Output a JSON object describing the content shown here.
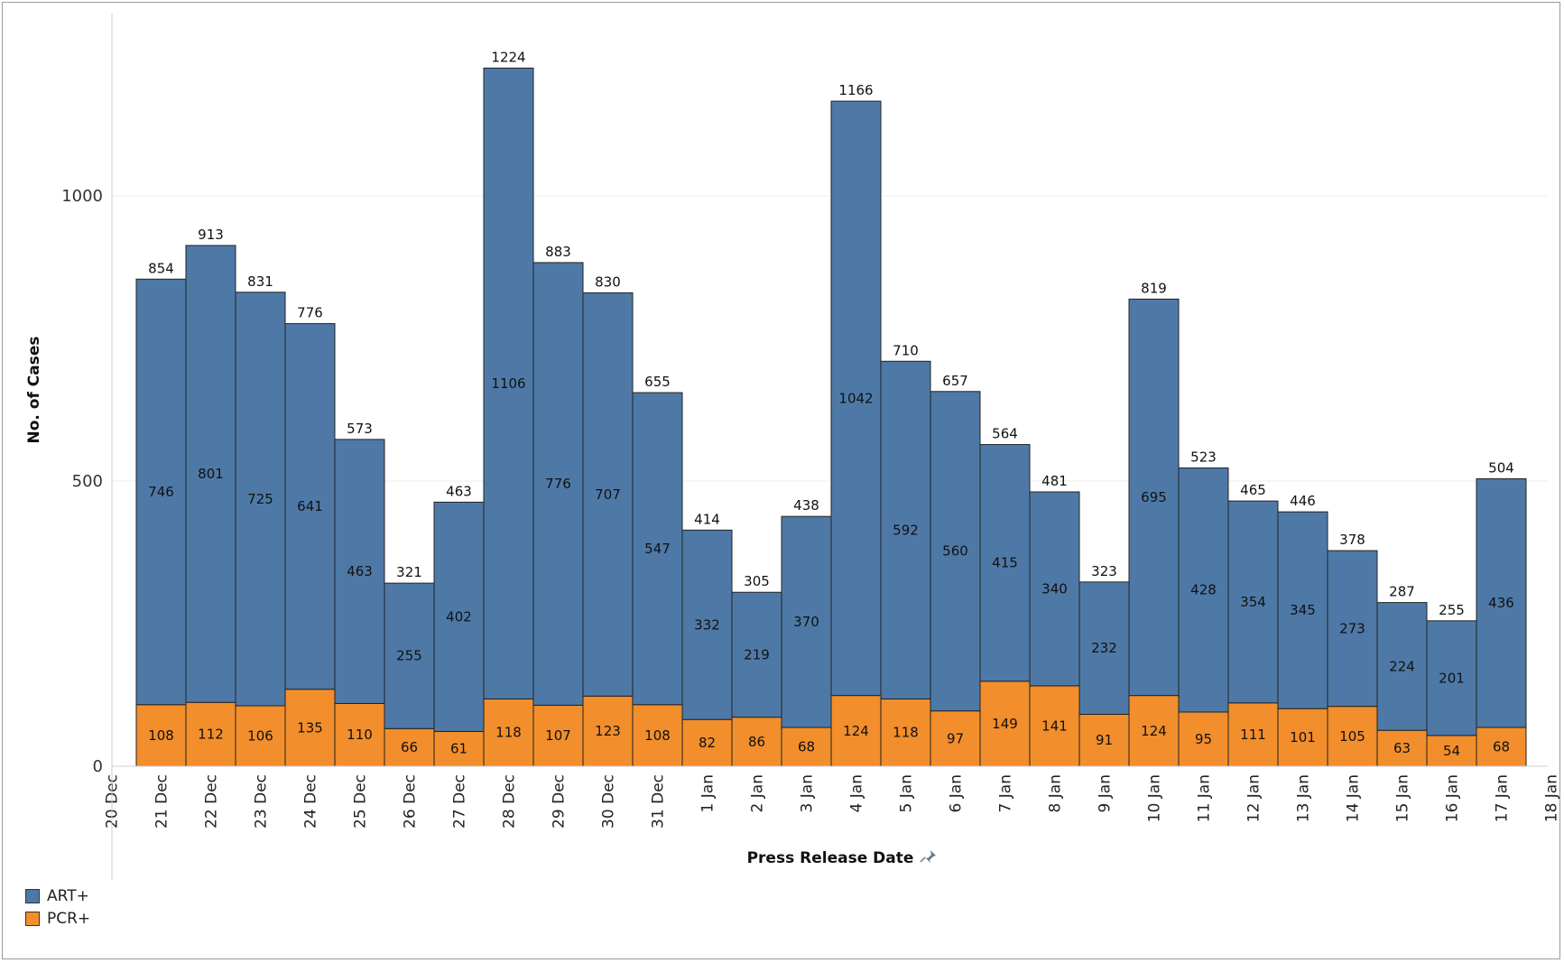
{
  "chart_data": {
    "type": "bar",
    "stacked": true,
    "title": "",
    "xlabel": "Press Release Date",
    "ylabel": "No. of Cases",
    "ylim": [
      0,
      1300
    ],
    "yticks": [
      0,
      500,
      1000
    ],
    "grid": true,
    "legend_position": "bottom-left",
    "axis_ticks": [
      "20 Dec",
      "21 Dec",
      "22 Dec",
      "23 Dec",
      "24 Dec",
      "25 Dec",
      "26 Dec",
      "27 Dec",
      "28 Dec",
      "29 Dec",
      "30 Dec",
      "31 Dec",
      "1 Jan",
      "2 Jan",
      "3 Jan",
      "4 Jan",
      "5 Jan",
      "6 Jan",
      "7 Jan",
      "8 Jan",
      "9 Jan",
      "10 Jan",
      "11 Jan",
      "12 Jan",
      "13 Jan",
      "14 Jan",
      "15 Jan",
      "16 Jan",
      "17 Jan",
      "18 Jan"
    ],
    "categories": [
      "21 Dec",
      "22 Dec",
      "23 Dec",
      "24 Dec",
      "25 Dec",
      "26 Dec",
      "27 Dec",
      "28 Dec",
      "29 Dec",
      "30 Dec",
      "31 Dec",
      "1 Jan",
      "2 Jan",
      "3 Jan",
      "4 Jan",
      "5 Jan",
      "6 Jan",
      "7 Jan",
      "8 Jan",
      "9 Jan",
      "10 Jan",
      "11 Jan",
      "12 Jan",
      "13 Jan",
      "14 Jan",
      "15 Jan",
      "16 Jan",
      "17 Jan"
    ],
    "series": [
      {
        "name": "PCR+",
        "color": "#f28e2b",
        "values": [
          108,
          112,
          106,
          135,
          110,
          66,
          61,
          118,
          107,
          123,
          108,
          82,
          86,
          68,
          124,
          118,
          97,
          149,
          141,
          91,
          124,
          95,
          111,
          101,
          105,
          63,
          54,
          68
        ]
      },
      {
        "name": "ART+",
        "color": "#4e79a7",
        "values": [
          746,
          801,
          725,
          641,
          463,
          255,
          402,
          1106,
          776,
          707,
          547,
          332,
          219,
          370,
          1042,
          592,
          560,
          415,
          340,
          232,
          695,
          428,
          354,
          345,
          273,
          224,
          201,
          436
        ]
      }
    ],
    "totals": [
      854,
      913,
      831,
      776,
      573,
      321,
      463,
      1224,
      883,
      830,
      655,
      414,
      305,
      438,
      1166,
      710,
      657,
      564,
      481,
      323,
      819,
      523,
      465,
      446,
      378,
      287,
      255,
      504
    ],
    "legend": [
      {
        "label": "ART+",
        "color": "#4e79a7"
      },
      {
        "label": "PCR+",
        "color": "#f28e2b"
      }
    ]
  }
}
